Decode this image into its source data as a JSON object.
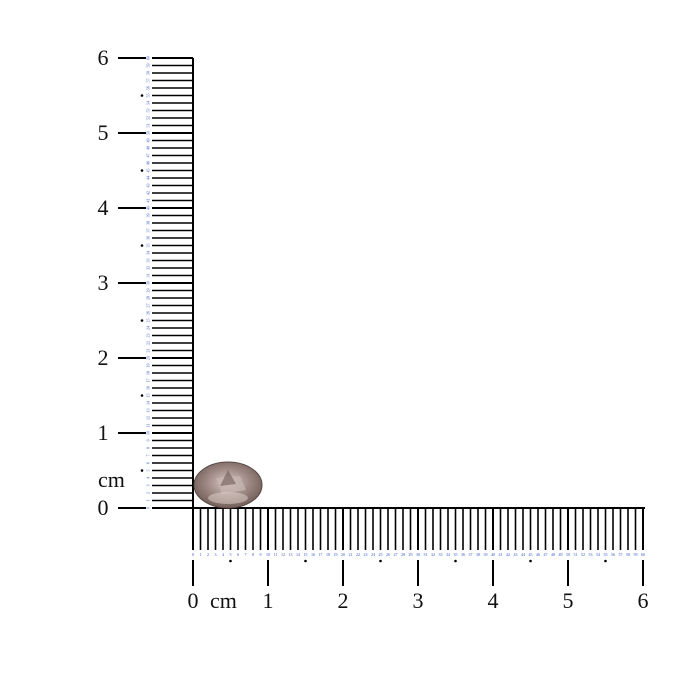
{
  "ruler": {
    "unit_label": "cm",
    "cm_labels": [
      "0",
      "1",
      "2",
      "3",
      "4",
      "5",
      "6"
    ],
    "mm_labels_max": 60,
    "tick_color": "#000000",
    "mm_number_color": "#3355cc"
  },
  "gem": {
    "shape": "oval",
    "colors": [
      "#8a7570",
      "#c9b8b4",
      "#5e4b4a",
      "#a99590"
    ]
  }
}
